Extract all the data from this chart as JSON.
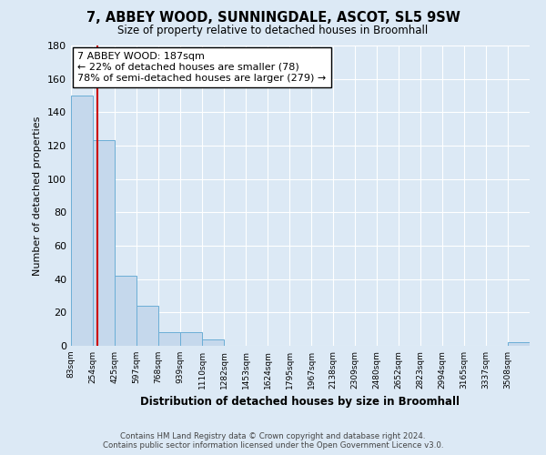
{
  "title": "7, ABBEY WOOD, SUNNINGDALE, ASCOT, SL5 9SW",
  "subtitle": "Size of property relative to detached houses in Broomhall",
  "xlabel": "Distribution of detached houses by size in Broomhall",
  "ylabel": "Number of detached properties",
  "bar_labels": [
    "83sqm",
    "254sqm",
    "425sqm",
    "597sqm",
    "768sqm",
    "939sqm",
    "1110sqm",
    "1282sqm",
    "1453sqm",
    "1624sqm",
    "1795sqm",
    "1967sqm",
    "2138sqm",
    "2309sqm",
    "2480sqm",
    "2652sqm",
    "2823sqm",
    "2994sqm",
    "3165sqm",
    "3337sqm",
    "3508sqm"
  ],
  "bar_heights": [
    150,
    123,
    42,
    24,
    8,
    8,
    4,
    0,
    0,
    0,
    0,
    0,
    0,
    0,
    0,
    0,
    0,
    0,
    0,
    0,
    2
  ],
  "bar_color": "#c5d8ec",
  "bar_edge_color": "#6baed6",
  "property_line_x": 1.21,
  "property_line_color": "#cc0000",
  "annotation_text": "7 ABBEY WOOD: 187sqm\n← 22% of detached houses are smaller (78)\n78% of semi-detached houses are larger (279) →",
  "annotation_box_color": "#ffffff",
  "annotation_box_edge": "#000000",
  "ylim": [
    0,
    180
  ],
  "yticks": [
    0,
    20,
    40,
    60,
    80,
    100,
    120,
    140,
    160,
    180
  ],
  "background_color": "#dce9f5",
  "grid_color": "#ffffff",
  "footer_line1": "Contains HM Land Registry data © Crown copyright and database right 2024.",
  "footer_line2": "Contains public sector information licensed under the Open Government Licence v3.0."
}
